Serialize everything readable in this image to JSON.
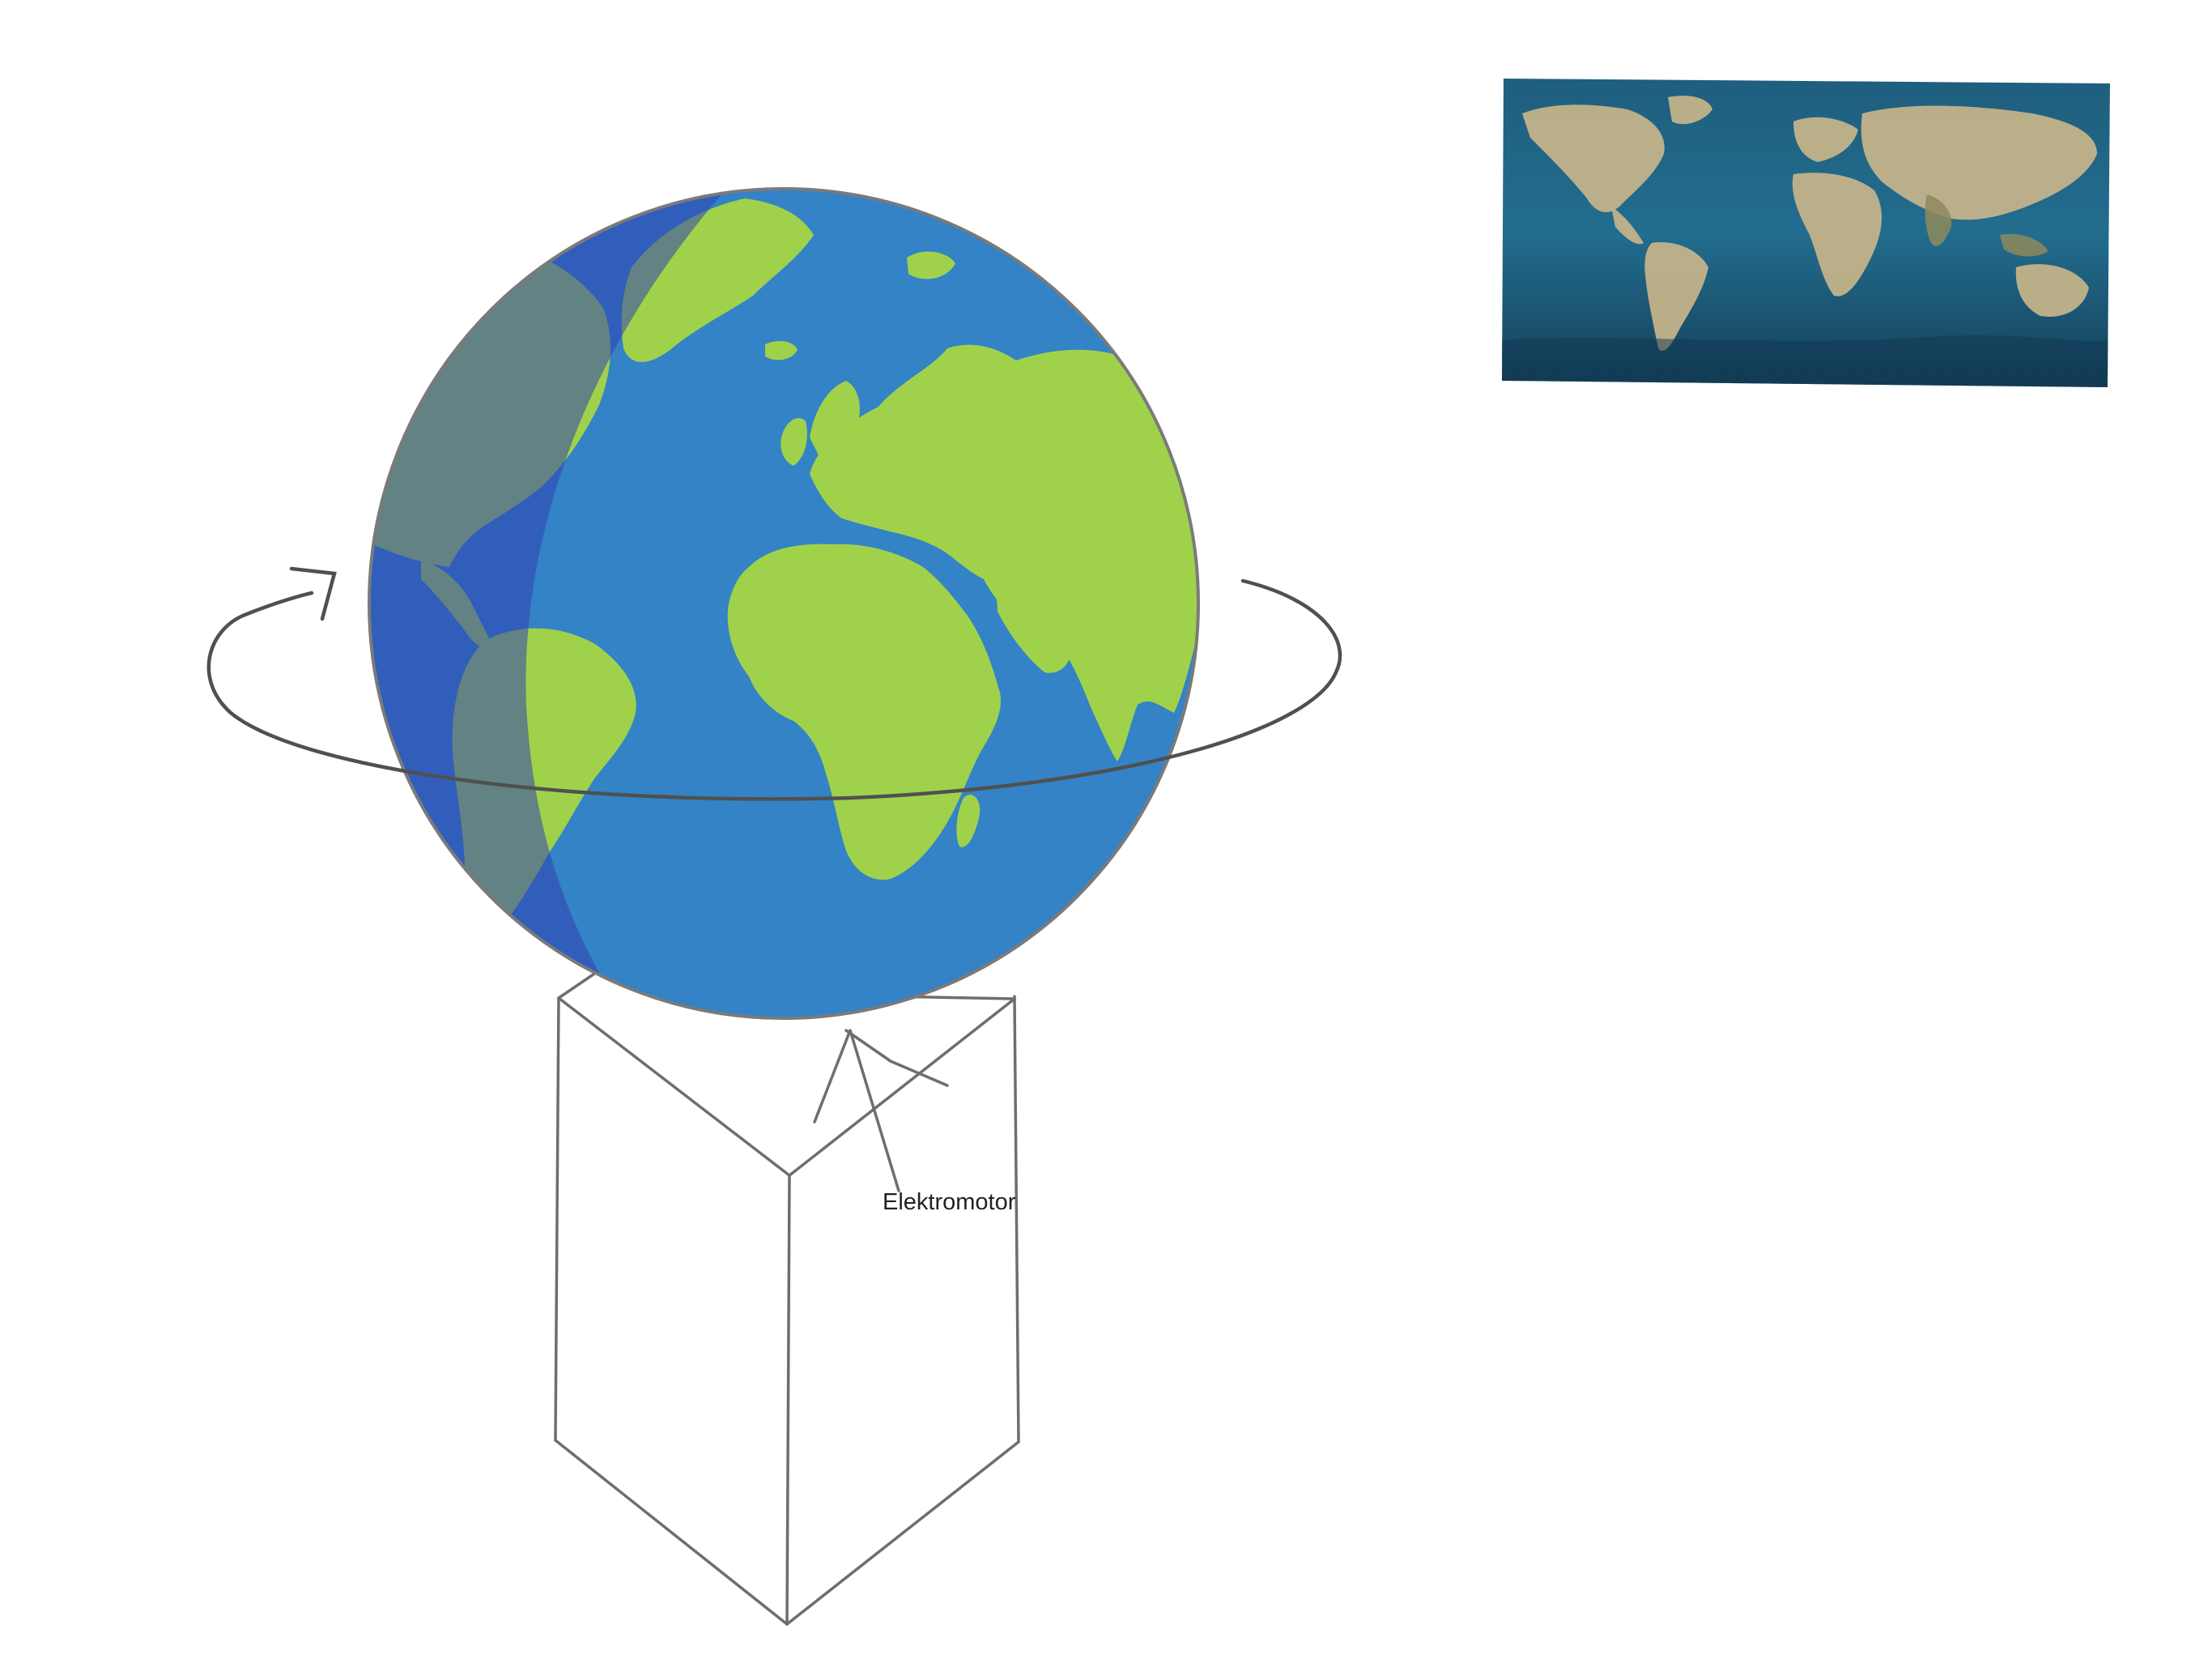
{
  "diagram": {
    "label": "Elektromotor",
    "colors": {
      "ocean": "#3383c6",
      "land": "#9fd24a",
      "night_shade": "#2f3fb3",
      "map_ocean": "#1b5f80",
      "sketch_stroke": "#6e6e6e",
      "background": "#ffffff"
    },
    "icons": {
      "rotation_arrow": "curved-arrow-icon"
    }
  }
}
